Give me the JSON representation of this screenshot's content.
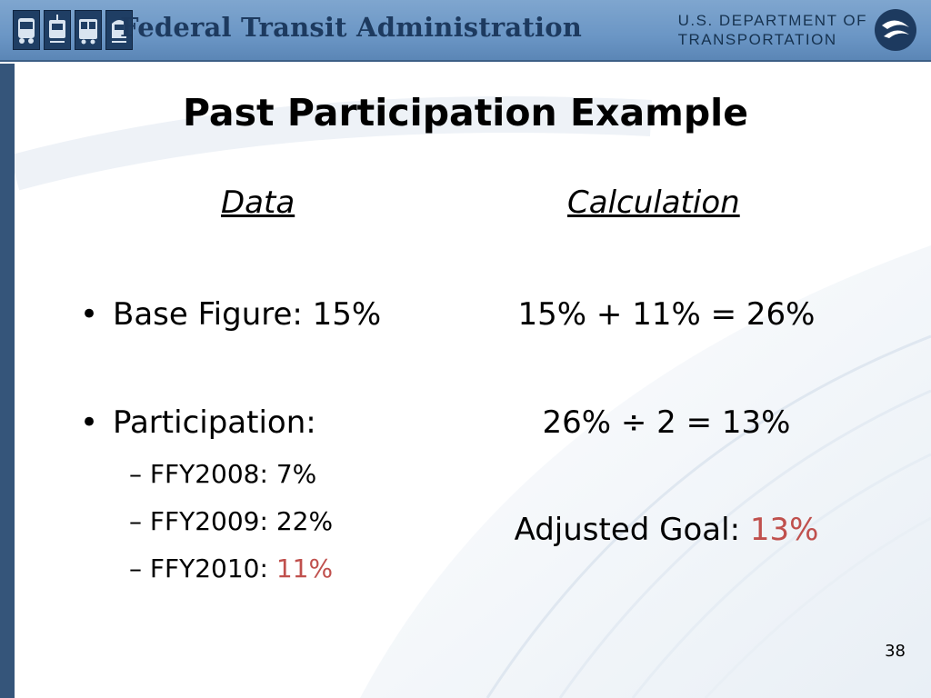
{
  "header": {
    "agency_title": "Federal Transit Administration",
    "dot_line1": "U.S. DEPARTMENT OF",
    "dot_line2": "TRANSPORTATION",
    "icons": [
      "bus-icon",
      "rail-car-icon",
      "streetcar-icon",
      "train-icon"
    ]
  },
  "slide": {
    "title": "Past Participation Example",
    "data_heading": "Data",
    "calc_heading": "Calculation",
    "bullets": [
      {
        "label": "Base Figure: 15%"
      },
      {
        "label": "Participation:"
      }
    ],
    "sub_items": [
      {
        "label": "FFY2008: ",
        "value": "7%"
      },
      {
        "label": "FFY2009: ",
        "value": "22%"
      },
      {
        "label": "FFY2010: ",
        "value": "11%"
      }
    ],
    "calc_lines": [
      {
        "text": "15% + 11% = 26%"
      },
      {
        "text": "26% ÷ 2 = 13%"
      }
    ],
    "adjusted_goal_label": "Adjusted Goal: ",
    "adjusted_goal_value": "13%",
    "bullet_char": "•",
    "dash_char": "–",
    "page_number": "38"
  },
  "colors": {
    "header_blue": "#6b96c5",
    "title_navy": "#1d3a5f",
    "highlight_red": "#c0504d"
  }
}
